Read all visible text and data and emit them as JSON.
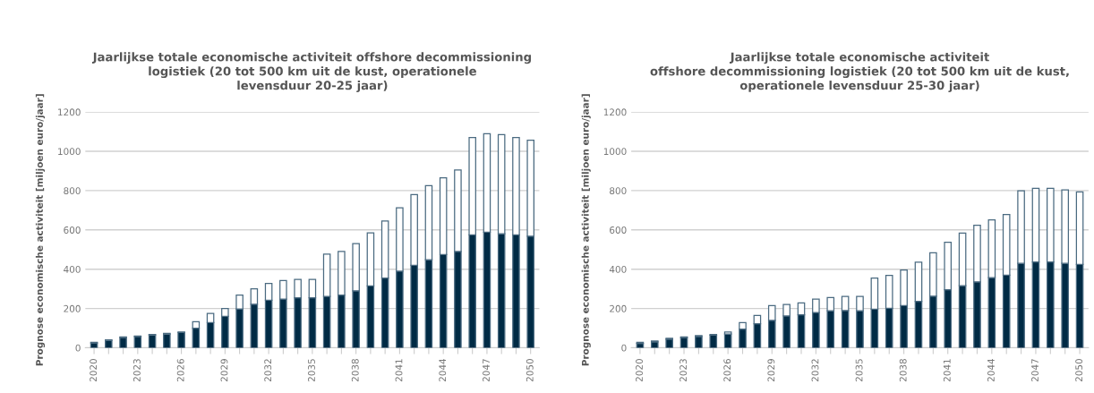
{
  "chart_data": [
    {
      "type": "bar",
      "stacked": true,
      "title": "Jaarlijkse totale economische activiteit offshore decommissioning\nlogistiek (20 tot 500 km uit de kust, operationele\nlevensduur 20-25 jaar)",
      "ylabel": "Prognose economische activiteit [miljoen euro/jaar]",
      "categories": [
        "2020",
        null,
        null,
        "2023",
        null,
        null,
        "2026",
        null,
        null,
        "2029",
        null,
        null,
        "2032",
        null,
        null,
        "2035",
        null,
        null,
        "2038",
        null,
        null,
        "2041",
        null,
        null,
        "2044",
        null,
        null,
        "2047",
        null,
        null,
        "2050"
      ],
      "series": [
        {
          "color": "#002b45",
          "values": [
            25,
            38,
            52,
            58,
            65,
            70,
            78,
            100,
            128,
            160,
            198,
            222,
            242,
            248,
            255,
            255,
            262,
            268,
            290,
            315,
            355,
            390,
            420,
            448,
            475,
            490,
            575,
            588,
            580,
            575,
            568
          ]
        },
        {
          "color": "#ffffff",
          "values": [
            3,
            2,
            3,
            2,
            3,
            3,
            2,
            33,
            47,
            40,
            70,
            78,
            85,
            94,
            93,
            93,
            215,
            222,
            240,
            270,
            290,
            322,
            360,
            377,
            390,
            415,
            495,
            502,
            505,
            495,
            489
          ]
        }
      ],
      "ylim": [
        0,
        1200
      ],
      "yticks": [
        0,
        200,
        400,
        600,
        800,
        1000,
        1200
      ],
      "grid": "y"
    },
    {
      "type": "bar",
      "stacked": true,
      "title": "Jaarlijkse totale economische activiteit\noffshore decommissioning logistiek (20 tot 500 km uit de kust,\noperationele levensduur 25-30 jaar)",
      "ylabel": "Prognose economische activiteit [miljoen euro/jaar]",
      "categories": [
        "2020",
        null,
        null,
        "2023",
        null,
        null,
        "2026",
        null,
        null,
        "2029",
        null,
        null,
        "2032",
        null,
        null,
        "2035",
        null,
        null,
        "2038",
        null,
        null,
        "2041",
        null,
        null,
        "2044",
        null,
        null,
        "2047",
        null,
        null,
        "2050"
      ],
      "series": [
        {
          "color": "#002b45",
          "values": [
            22,
            30,
            44,
            52,
            58,
            64,
            70,
            95,
            122,
            140,
            162,
            168,
            180,
            188,
            190,
            188,
            197,
            201,
            215,
            236,
            263,
            296,
            316,
            336,
            357,
            370,
            430,
            437,
            437,
            430,
            424
          ]
        },
        {
          "color": "#ffffff",
          "values": [
            6,
            5,
            4,
            3,
            4,
            4,
            10,
            33,
            43,
            75,
            58,
            60,
            68,
            68,
            72,
            73,
            158,
            168,
            181,
            200,
            221,
            241,
            268,
            288,
            294,
            308,
            369,
            375,
            375,
            374,
            369
          ]
        }
      ],
      "ylim": [
        0,
        1200
      ],
      "yticks": [
        0,
        200,
        400,
        600,
        800,
        1000,
        1200
      ],
      "grid": "y"
    }
  ]
}
